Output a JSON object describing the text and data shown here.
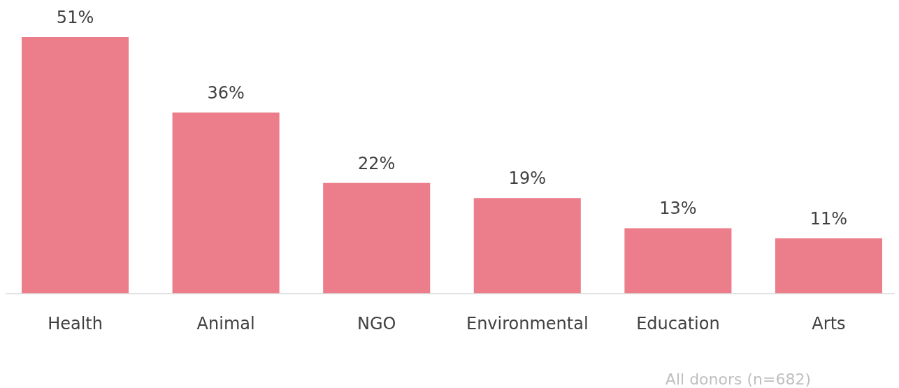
{
  "chart_data": {
    "type": "bar",
    "categories": [
      "Health",
      "Animal",
      "NGO",
      "Environmental",
      "Education",
      "Arts"
    ],
    "values": [
      51,
      36,
      22,
      19,
      13,
      11
    ],
    "value_labels": [
      "51%",
      "36%",
      "22%",
      "19%",
      "13%",
      "11%"
    ],
    "color": "#ec7d8a",
    "annotations": [
      "All donors (n=682)"
    ]
  }
}
